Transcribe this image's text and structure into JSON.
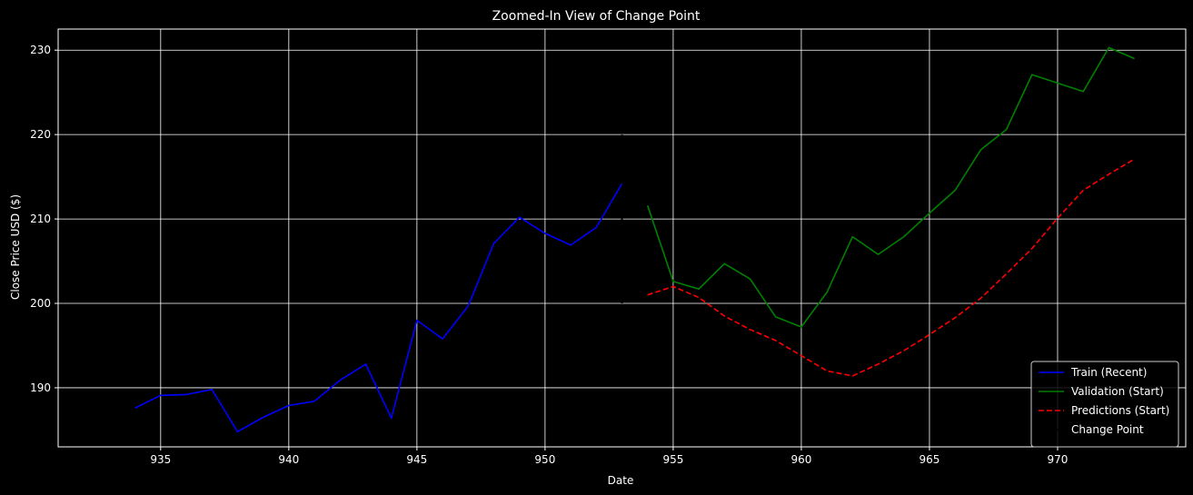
{
  "chart_data": {
    "type": "line",
    "title": "Zoomed-In View of Change Point",
    "xlabel": "Date",
    "ylabel": "Close Price USD ($)",
    "xlim": [
      931.0,
      975.0
    ],
    "ylim": [
      183.0,
      232.5
    ],
    "xticks": [
      935,
      940,
      945,
      950,
      955,
      960,
      965,
      970
    ],
    "yticks": [
      190,
      200,
      210,
      220,
      230
    ],
    "grid": true,
    "legend_position": "lower-right",
    "colors": {
      "background": "#000000",
      "text": "#ffffff",
      "grid": "#ffffff"
    },
    "series": [
      {
        "name": "Train (Recent)",
        "color": "#0000ff",
        "dash": "solid",
        "x": [
          934,
          935,
          936,
          937,
          938,
          939,
          940,
          941,
          942,
          943,
          944,
          945,
          946,
          947,
          948,
          949,
          950,
          951,
          952,
          953
        ],
        "y": [
          187.6,
          189.1,
          189.2,
          189.8,
          184.8,
          186.5,
          187.9,
          188.4,
          190.9,
          192.8,
          186.4,
          198.0,
          195.8,
          199.7,
          207.1,
          210.2,
          208.3,
          206.9,
          209.0,
          214.2
        ]
      },
      {
        "name": "Validation (Start)",
        "color": "#008000",
        "dash": "solid",
        "x": [
          954,
          955,
          956,
          957,
          958,
          959,
          960,
          961,
          962,
          963,
          964,
          965,
          966,
          967,
          968,
          969,
          970,
          971,
          972,
          973
        ],
        "y": [
          211.6,
          202.6,
          201.7,
          204.7,
          202.9,
          198.4,
          197.2,
          201.3,
          207.9,
          205.8,
          207.9,
          210.7,
          213.4,
          218.2,
          220.6,
          227.1,
          226.1,
          225.1,
          230.3,
          229.0
        ]
      },
      {
        "name": "Predictions (Start)",
        "color": "#ff0000",
        "dash": "dashed",
        "x": [
          954,
          955,
          956,
          957,
          958,
          959,
          960,
          961,
          962,
          963,
          964,
          965,
          966,
          967,
          968,
          969,
          970,
          971,
          972,
          973
        ],
        "y": [
          201.0,
          202.0,
          200.7,
          198.5,
          196.9,
          195.6,
          193.8,
          192.0,
          191.4,
          192.8,
          194.4,
          196.3,
          198.3,
          200.6,
          203.5,
          206.5,
          210.1,
          213.4,
          215.3,
          217.1
        ]
      }
    ],
    "change_point": {
      "name": "Change Point",
      "color": "#000000",
      "x": 953,
      "y_range": [
        200,
        220
      ]
    }
  }
}
